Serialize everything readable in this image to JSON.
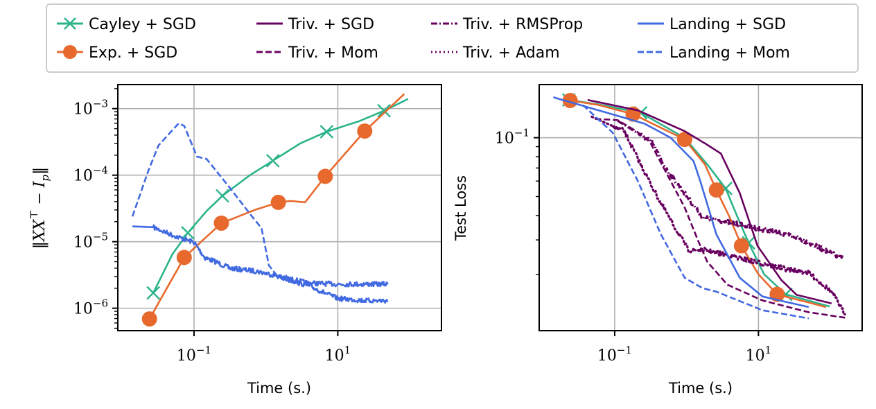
{
  "legend": {
    "placement": "top-center",
    "entries": [
      {
        "label": "Cayley + SGD",
        "color": "#2bb38a",
        "style": "solid",
        "marker": "x"
      },
      {
        "label": "Exp. + SGD",
        "color": "#e8692e",
        "style": "solid",
        "marker": "o"
      },
      {
        "label": "Triv. + SGD",
        "color": "#68005f",
        "style": "solid",
        "marker": ""
      },
      {
        "label": "Triv. + Mom",
        "color": "#68005f",
        "style": "dashed",
        "marker": ""
      },
      {
        "label": "Triv. + RMSProp",
        "color": "#68005f",
        "style": "dashdot",
        "marker": ""
      },
      {
        "label": "Triv. + Adam",
        "color": "#68005f",
        "style": "dotted",
        "marker": ""
      },
      {
        "label": "Landing + SGD",
        "color": "#4169e1",
        "style": "solid",
        "marker": ""
      },
      {
        "label": "Landing + Mom",
        "color": "#4169e1",
        "style": "dashed",
        "marker": ""
      }
    ]
  },
  "chart_data": [
    {
      "type": "line",
      "title": "",
      "xlabel": "Time (s.)",
      "ylabel": "||XX^T - I_p||",
      "xscale": "log",
      "yscale": "log",
      "xlim": [
        0.0087,
        277
      ],
      "ylim": [
        4.6e-07,
        0.0023
      ],
      "grid": true,
      "xticks": [
        {
          "value": 0.1,
          "base": "10",
          "exp": "−1"
        },
        {
          "value": 10,
          "base": "10",
          "exp": "1"
        }
      ],
      "yticks": [
        {
          "value": 0.001,
          "base": "10",
          "exp": "−3"
        },
        {
          "value": 0.0001,
          "base": "10",
          "exp": "−4"
        },
        {
          "value": 1e-05,
          "base": "10",
          "exp": "−5"
        },
        {
          "value": 1e-06,
          "base": "10",
          "exp": "−6"
        }
      ],
      "series": [
        {
          "name": "Cayley + SGD",
          "x": [
            0.0271,
            0.05,
            0.082,
            0.15,
            0.248,
            0.6,
            1.25,
            3.0,
            7.0,
            20,
            44,
            95
          ],
          "y": [
            1.7e-06,
            6.5e-06,
            1.36e-05,
            2.9e-05,
            4.9e-05,
            0.0001,
            0.000165,
            0.0003,
            0.00045,
            0.00065,
            0.00093,
            0.0014
          ],
          "markers_at": [
            0,
            2,
            4,
            6,
            8,
            10
          ]
        },
        {
          "name": "Exp. + SGD",
          "x": [
            0.024,
            0.073,
            0.24,
            0.7,
            1.49,
            2.2,
            3.5,
            6.7,
            23.7,
            84
          ],
          "y": [
            6.9e-07,
            5.8e-06,
            1.9e-05,
            3e-05,
            3.9e-05,
            4.1e-05,
            3.9e-05,
            9.6e-05,
            0.00046,
            0.00166
          ],
          "markers_at": [
            0,
            1,
            2,
            4,
            7,
            8
          ]
        },
        {
          "name": "Landing + SGD",
          "x": [
            0.0139,
            0.027,
            0.056,
            0.1,
            0.14,
            0.2,
            0.31,
            0.75,
            1.55,
            3.8,
            10,
            25,
            50
          ],
          "y": [
            1.7e-05,
            1.65e-05,
            1.2e-05,
            9.8e-06,
            5.8e-06,
            5e-06,
            4e-06,
            3.6e-06,
            3e-06,
            2.4e-06,
            2.3e-06,
            2.3e-06,
            2.3e-06
          ],
          "noisy": true
        },
        {
          "name": "Landing + Mom",
          "x": [
            0.0139,
            0.023,
            0.032,
            0.061,
            0.073,
            0.11,
            0.15,
            0.31,
            0.64,
            0.87,
            1.1,
            1.46,
            3.8,
            10,
            25,
            50
          ],
          "y": [
            2.4e-05,
            0.000115,
            0.00028,
            0.0006,
            0.00055,
            0.00019,
            0.000175,
            6.6e-05,
            2.4e-05,
            1.6e-05,
            4.4e-06,
            3e-06,
            2.2e-06,
            1.4e-06,
            1.3e-06,
            1.3e-06
          ],
          "noisy_from": 1.1
        }
      ]
    },
    {
      "type": "line",
      "title": "",
      "xlabel": "Time (s.)",
      "ylabel": "Test Loss",
      "xscale": "log",
      "yscale": "log",
      "xlim": [
        0.0089,
        277
      ],
      "ylim": [
        0.0103,
        0.187
      ],
      "grid": true,
      "xticks": [
        {
          "value": 0.1,
          "base": "10",
          "exp": "−1"
        },
        {
          "value": 10,
          "base": "10",
          "exp": "1"
        }
      ],
      "yticks": [
        {
          "value": 0.1,
          "base": "10",
          "exp": "−1"
        }
      ],
      "series": [
        {
          "name": "Cayley + SGD",
          "x": [
            0.023,
            0.06,
            0.23,
            0.94,
            2.0,
            3.5,
            5.0,
            7.3,
            12,
            24,
            98
          ],
          "y": [
            0.156,
            0.148,
            0.134,
            0.1,
            0.072,
            0.055,
            0.04,
            0.029,
            0.02,
            0.0158,
            0.0137
          ],
          "markers_at": [
            0,
            2,
            5,
            7,
            9
          ]
        },
        {
          "name": "Exp. + SGD",
          "x": [
            0.024,
            0.06,
            0.18,
            0.94,
            1.8,
            2.6,
            4.0,
            5.8,
            10,
            18.2,
            87
          ],
          "y": [
            0.155,
            0.147,
            0.132,
            0.098,
            0.073,
            0.054,
            0.039,
            0.028,
            0.02,
            0.0158,
            0.0136
          ],
          "markers_at": [
            0,
            2,
            3,
            5,
            7,
            9
          ]
        },
        {
          "name": "Triv. + SGD",
          "x": [
            0.042,
            0.21,
            0.94,
            1.94,
            3.0,
            5.5,
            9.7,
            20.8,
            34,
            104
          ],
          "y": [
            0.156,
            0.138,
            0.108,
            0.092,
            0.083,
            0.052,
            0.028,
            0.0187,
            0.0157,
            0.0142
          ]
        },
        {
          "name": "Triv. + Mom",
          "x": [
            0.053,
            0.11,
            0.2,
            0.31,
            0.6,
            0.94,
            1.46,
            1.94,
            3.7,
            11.4,
            50,
            160
          ],
          "y": [
            0.125,
            0.123,
            0.108,
            0.095,
            0.06,
            0.044,
            0.0295,
            0.0232,
            0.0177,
            0.0147,
            0.0128,
            0.012
          ]
        },
        {
          "name": "Triv. + RMSProp",
          "x": [
            0.11,
            0.33,
            0.52,
            0.94,
            1.67,
            2.6,
            7.9,
            34,
            150
          ],
          "y": [
            0.122,
            0.095,
            0.069,
            0.052,
            0.039,
            0.038,
            0.035,
            0.031,
            0.024
          ],
          "noisy": true
        },
        {
          "name": "Triv. + Adam",
          "x": [
            0.048,
            0.136,
            0.21,
            0.38,
            0.69,
            1.07,
            1.82,
            3.7,
            24,
            32,
            50,
            104,
            160
          ],
          "y": [
            0.128,
            0.108,
            0.078,
            0.051,
            0.0347,
            0.0266,
            0.0266,
            0.025,
            0.0213,
            0.021,
            0.0203,
            0.0163,
            0.0125
          ],
          "noisy": true
        },
        {
          "name": "Landing + SGD",
          "x": [
            0.014,
            0.06,
            0.26,
            0.6,
            1.25,
            1.55,
            2.6,
            5.5,
            11.4,
            50
          ],
          "y": [
            0.161,
            0.138,
            0.118,
            0.1,
            0.076,
            0.06,
            0.032,
            0.0192,
            0.0154,
            0.0136
          ]
        },
        {
          "name": "Landing + Mom",
          "x": [
            0.036,
            0.094,
            0.21,
            0.44,
            0.94,
            1.67,
            2.6,
            11.4,
            50
          ],
          "y": [
            0.147,
            0.106,
            0.06,
            0.032,
            0.0192,
            0.017,
            0.0163,
            0.0131,
            0.0119
          ]
        }
      ]
    }
  ]
}
